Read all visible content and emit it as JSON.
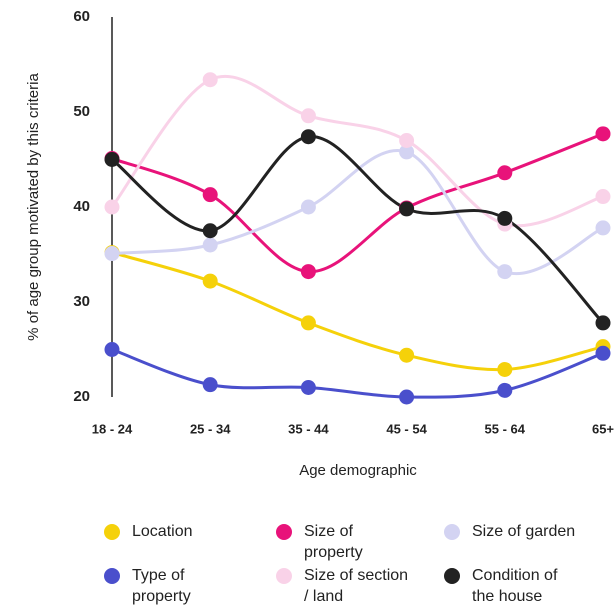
{
  "chart_data": {
    "type": "line",
    "x_label": "Age demographic",
    "y_label": "% of age group motivated by this criteria",
    "categories": [
      "18 - 24",
      "25 - 34",
      "35 - 44",
      "45 - 54",
      "55 - 64",
      "65+"
    ],
    "ylim": [
      20,
      60
    ],
    "yticks": [
      20,
      30,
      40,
      50,
      60
    ],
    "smooth": true,
    "series": [
      {
        "name": "Location",
        "color": "#f5d10a",
        "values": [
          35.2,
          32.2,
          27.8,
          24.4,
          22.9,
          25.3
        ]
      },
      {
        "name": "Size of property",
        "color": "#e8137a",
        "values": [
          45.1,
          41.3,
          33.2,
          39.9,
          43.6,
          47.7
        ]
      },
      {
        "name": "Size of garden",
        "color": "#d3d3f2",
        "values": [
          35.1,
          36.0,
          40.0,
          45.8,
          33.2,
          37.8
        ]
      },
      {
        "name": "Type of property",
        "color": "#4a4fcc",
        "values": [
          25.0,
          21.3,
          21.0,
          20.0,
          20.7,
          24.6
        ]
      },
      {
        "name": "Size of section / land",
        "color": "#f9d2e8",
        "values": [
          40.0,
          53.4,
          49.6,
          47.0,
          38.2,
          41.1
        ]
      },
      {
        "name": "Condition of the house",
        "color": "#222222",
        "values": [
          45.0,
          37.5,
          47.4,
          39.8,
          38.8,
          27.8
        ]
      }
    ]
  }
}
